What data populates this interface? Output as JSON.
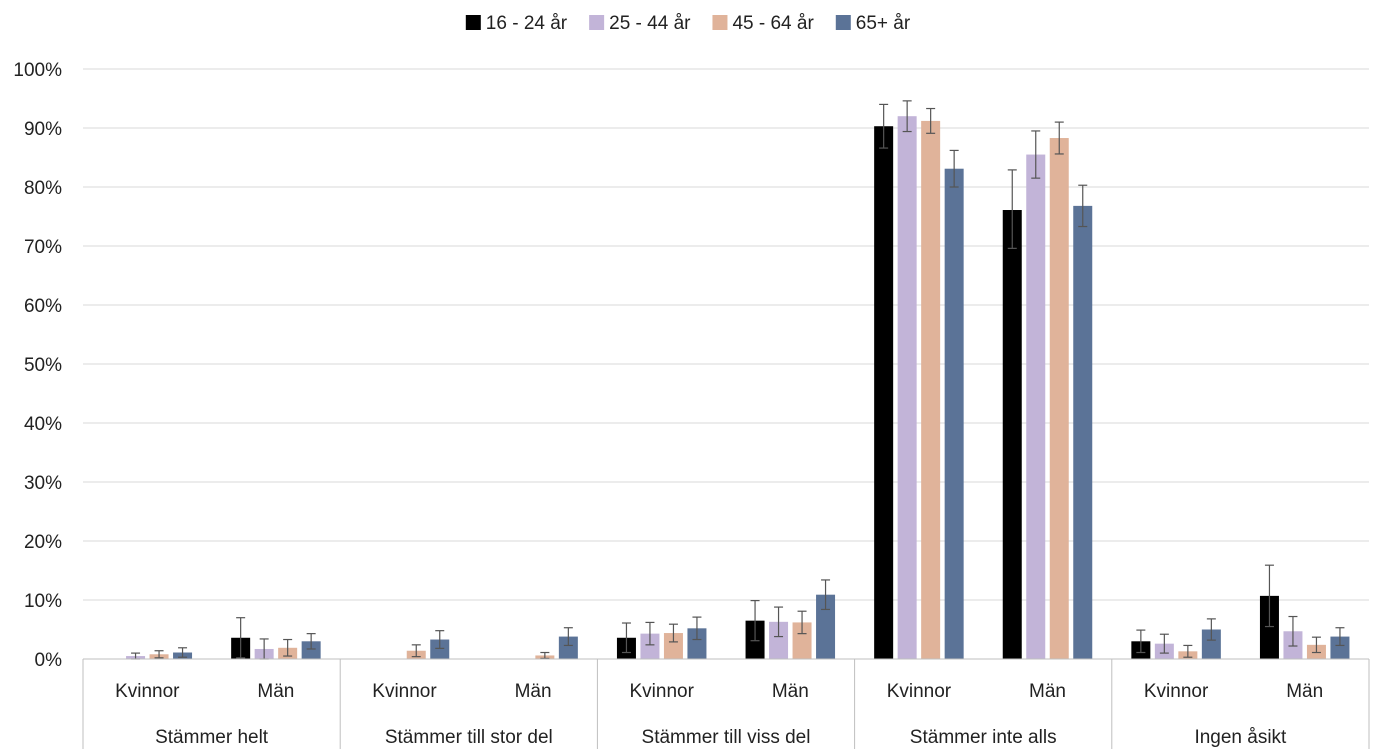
{
  "chart_data": {
    "type": "bar",
    "title": "",
    "xlabel": "",
    "ylabel": "",
    "ylim": [
      0,
      100
    ],
    "y_ticks": [
      "0%",
      "10%",
      "20%",
      "30%",
      "40%",
      "50%",
      "60%",
      "70%",
      "80%",
      "90%",
      "100%"
    ],
    "grid": true,
    "legend_position": "top",
    "groups": [
      "Stämmer helt",
      "Stämmer till stor del",
      "Stämmer till viss del",
      "Stämmer inte alls",
      "Ingen åsikt"
    ],
    "subcategories": [
      "Kvinnor",
      "Män"
    ],
    "series": [
      {
        "name": "16 - 24 år",
        "color": "#000000",
        "values": [
          0.0,
          3.6,
          0.0,
          0.0,
          3.6,
          6.5,
          90.3,
          76.1,
          3.0,
          10.7
        ],
        "err_low": [
          0.0,
          3.4,
          0.0,
          0.0,
          2.5,
          3.4,
          3.7,
          6.5,
          1.9,
          5.2
        ],
        "err_high": [
          0.0,
          3.4,
          0.0,
          0.0,
          2.5,
          3.4,
          3.7,
          6.8,
          1.9,
          5.2
        ]
      },
      {
        "name": "25 - 44 år",
        "color": "#c2b4d8",
        "values": [
          0.5,
          1.7,
          0.0,
          0.0,
          4.3,
          6.3,
          92.0,
          85.5,
          2.6,
          4.7
        ],
        "err_low": [
          0.5,
          1.7,
          0.0,
          0.0,
          1.9,
          2.5,
          2.6,
          4.0,
          1.6,
          2.5
        ],
        "err_high": [
          0.5,
          1.7,
          0.0,
          0.0,
          1.9,
          2.5,
          2.6,
          4.0,
          1.6,
          2.5
        ]
      },
      {
        "name": "45 - 64 år",
        "color": "#e0b39a",
        "values": [
          0.8,
          1.9,
          1.4,
          0.6,
          4.4,
          6.2,
          91.2,
          88.3,
          1.3,
          2.4
        ],
        "err_low": [
          0.6,
          1.4,
          1.0,
          0.5,
          1.5,
          1.9,
          2.1,
          2.7,
          1.0,
          1.3
        ],
        "err_high": [
          0.6,
          1.4,
          1.0,
          0.5,
          1.5,
          1.9,
          2.1,
          2.7,
          1.0,
          1.3
        ]
      },
      {
        "name": "65+ år",
        "color": "#5b7397",
        "values": [
          1.1,
          3.0,
          3.3,
          3.8,
          5.2,
          10.9,
          83.1,
          76.8,
          5.0,
          3.8
        ],
        "err_low": [
          0.8,
          1.3,
          1.5,
          1.5,
          1.9,
          2.5,
          3.1,
          3.5,
          1.8,
          1.5
        ],
        "err_high": [
          0.8,
          1.3,
          1.5,
          1.5,
          1.9,
          2.5,
          3.1,
          3.5,
          1.8,
          1.5
        ]
      }
    ]
  }
}
